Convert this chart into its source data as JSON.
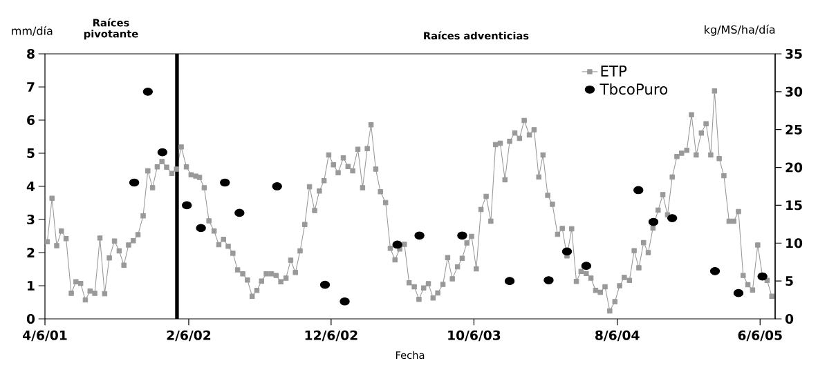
{
  "chart_data": {
    "type": "line",
    "xlabel": "Fecha",
    "ylabel": "mm/día",
    "y2label": "kg/MS/ha/día",
    "annotations": [
      "Raíces pivotante",
      "Raíces adventicias"
    ],
    "xlim": [
      "2001-04-06",
      "2005-07-08"
    ],
    "xticks": [
      {
        "value": "2001-04-06",
        "label": "4/6/01"
      },
      {
        "value": "2002-02-06",
        "label": "2/6/02"
      },
      {
        "value": "2002-12-06",
        "label": "12/6/02"
      },
      {
        "value": "2003-10-06",
        "label": "10/6/03"
      },
      {
        "value": "2004-08-06",
        "label": "8/6/04"
      },
      {
        "value": "2005-06-06",
        "label": "6/6/05"
      }
    ],
    "ylim": [
      0,
      8
    ],
    "yticks": [
      0,
      1,
      2,
      3,
      4,
      5,
      6,
      7,
      8
    ],
    "y2lim": [
      0,
      35
    ],
    "y2ticks": [
      0,
      5,
      10,
      15,
      20,
      25,
      30,
      35
    ],
    "legend": "top right",
    "ref_lines": [
      {
        "axis": "x",
        "value": "2002-01-12",
        "color": "#000000"
      }
    ],
    "series": [
      {
        "name": "ETP",
        "marker": "square",
        "color": "#999999",
        "axis": "y",
        "x": [
          "2001-04-11",
          "2001-04-21",
          "2001-05-01",
          "2001-05-11",
          "2001-05-21",
          "2001-06-01",
          "2001-06-11",
          "2001-06-21",
          "2001-07-01",
          "2001-07-11",
          "2001-07-21",
          "2001-08-01",
          "2001-08-11",
          "2001-08-21",
          "2001-09-01",
          "2001-09-11",
          "2001-09-21",
          "2001-10-01",
          "2001-10-11",
          "2001-10-21",
          "2001-11-01",
          "2001-11-11",
          "2001-11-21",
          "2001-12-01",
          "2001-12-11",
          "2001-12-21",
          "2002-01-01",
          "2002-01-11",
          "2002-01-21",
          "2002-02-01",
          "2002-02-11",
          "2002-02-21",
          "2002-03-01",
          "2002-03-11",
          "2002-03-21",
          "2002-04-01",
          "2002-04-11",
          "2002-04-21",
          "2002-05-01",
          "2002-05-11",
          "2002-05-21",
          "2002-06-01",
          "2002-06-11",
          "2002-06-21",
          "2002-07-01",
          "2002-07-11",
          "2002-07-21",
          "2002-08-01",
          "2002-08-11",
          "2002-08-21",
          "2002-09-01",
          "2002-09-11",
          "2002-09-21",
          "2002-10-01",
          "2002-10-11",
          "2002-10-21",
          "2002-11-01",
          "2002-11-11",
          "2002-11-21",
          "2002-12-01",
          "2002-12-11",
          "2002-12-21",
          "2003-01-01",
          "2003-01-11",
          "2003-01-21",
          "2003-02-01",
          "2003-02-11",
          "2003-02-21",
          "2003-03-01",
          "2003-03-11",
          "2003-03-21",
          "2003-04-01",
          "2003-04-11",
          "2003-04-21",
          "2003-05-01",
          "2003-05-11",
          "2003-05-21",
          "2003-06-01",
          "2003-06-11",
          "2003-06-21",
          "2003-07-01",
          "2003-07-11",
          "2003-07-21",
          "2003-08-01",
          "2003-08-11",
          "2003-08-21",
          "2003-09-01",
          "2003-09-11",
          "2003-09-21",
          "2003-10-01",
          "2003-10-11",
          "2003-10-21",
          "2003-11-01",
          "2003-11-11",
          "2003-11-21",
          "2003-12-01",
          "2003-12-11",
          "2003-12-21",
          "2004-01-01",
          "2004-01-11",
          "2004-01-21",
          "2004-02-01",
          "2004-02-11",
          "2004-02-21",
          "2004-03-01",
          "2004-03-11",
          "2004-03-21",
          "2004-04-01",
          "2004-04-11",
          "2004-04-21",
          "2004-05-01",
          "2004-05-11",
          "2004-05-21",
          "2004-06-01",
          "2004-06-11",
          "2004-06-21",
          "2004-07-01",
          "2004-07-11",
          "2004-07-21",
          "2004-08-01",
          "2004-08-11",
          "2004-08-21",
          "2004-09-01",
          "2004-09-11",
          "2004-09-21",
          "2004-10-01",
          "2004-10-11",
          "2004-10-21",
          "2004-11-01",
          "2004-11-11",
          "2004-11-21",
          "2004-12-01",
          "2004-12-11",
          "2004-12-21",
          "2005-01-01",
          "2005-01-11",
          "2005-01-21",
          "2005-02-01",
          "2005-02-11",
          "2005-02-21",
          "2005-03-01",
          "2005-03-11",
          "2005-03-21",
          "2005-04-01",
          "2005-04-11",
          "2005-04-21",
          "2005-05-01",
          "2005-05-11",
          "2005-05-21",
          "2005-06-01",
          "2005-06-11",
          "2005-06-21",
          "2005-07-01"
        ],
        "values": [
          2.33,
          3.64,
          2.21,
          2.65,
          2.42,
          0.77,
          1.12,
          1.07,
          0.57,
          0.84,
          0.77,
          2.44,
          0.76,
          1.84,
          2.35,
          2.05,
          1.62,
          2.23,
          2.36,
          2.54,
          3.11,
          4.47,
          3.96,
          4.59,
          4.75,
          4.58,
          4.39,
          4.52,
          5.19,
          4.59,
          4.35,
          4.31,
          4.27,
          3.96,
          2.96,
          2.65,
          2.24,
          2.4,
          2.19,
          1.98,
          1.48,
          1.36,
          1.17,
          0.68,
          0.86,
          1.14,
          1.36,
          1.36,
          1.31,
          1.12,
          1.23,
          1.77,
          1.4,
          2.05,
          2.85,
          3.99,
          3.27,
          3.86,
          4.17,
          4.95,
          4.65,
          4.41,
          4.86,
          4.6,
          4.47,
          5.12,
          3.96,
          5.14,
          5.86,
          4.52,
          3.84,
          3.51,
          2.13,
          1.78,
          2.11,
          2.25,
          1.09,
          0.97,
          0.59,
          0.93,
          1.06,
          0.63,
          0.78,
          1.04,
          1.85,
          1.21,
          1.57,
          1.83,
          2.29,
          2.49,
          1.51,
          3.3,
          3.7,
          2.95,
          5.26,
          5.3,
          4.2,
          5.36,
          5.61,
          5.45,
          5.99,
          5.55,
          5.71,
          4.28,
          4.95,
          3.73,
          3.46,
          2.55,
          2.73,
          1.9,
          2.72,
          1.13,
          1.43,
          1.37,
          1.23,
          0.86,
          0.8,
          0.97,
          0.24,
          0.52,
          1.0,
          1.25,
          1.16,
          2.06,
          1.54,
          2.3,
          2.0,
          2.74,
          3.28,
          3.75,
          3.14,
          4.28,
          4.9,
          5.0,
          5.09,
          6.16,
          4.95,
          5.61,
          5.89,
          4.95,
          6.88,
          4.84,
          4.32,
          2.95,
          2.95,
          3.24,
          1.31,
          1.03,
          0.87,
          2.23,
          1.29,
          1.16,
          0.68
        ]
      },
      {
        "name": "TbcoPuro",
        "type": "scatter",
        "marker": "circle",
        "color": "#000000",
        "axis": "y2",
        "x": [
          "2001-10-13",
          "2001-11-11",
          "2001-12-12",
          "2002-02-02",
          "2002-03-04",
          "2002-04-24",
          "2002-05-25",
          "2002-08-13",
          "2002-11-23",
          "2003-01-04",
          "2003-04-26",
          "2003-06-12",
          "2003-09-11",
          "2003-12-21",
          "2004-03-13",
          "2004-04-21",
          "2004-06-01",
          "2004-09-20",
          "2004-10-22",
          "2004-12-01",
          "2005-03-02",
          "2005-04-21",
          "2005-06-11"
        ],
        "values": [
          18.0,
          30.0,
          22.0,
          15.0,
          12.0,
          18.0,
          14.0,
          17.5,
          4.5,
          2.3,
          9.8,
          11.0,
          11.0,
          5.0,
          5.1,
          8.9,
          7.0,
          17.0,
          12.8,
          13.3,
          6.3,
          3.4,
          5.6
        ]
      }
    ]
  }
}
